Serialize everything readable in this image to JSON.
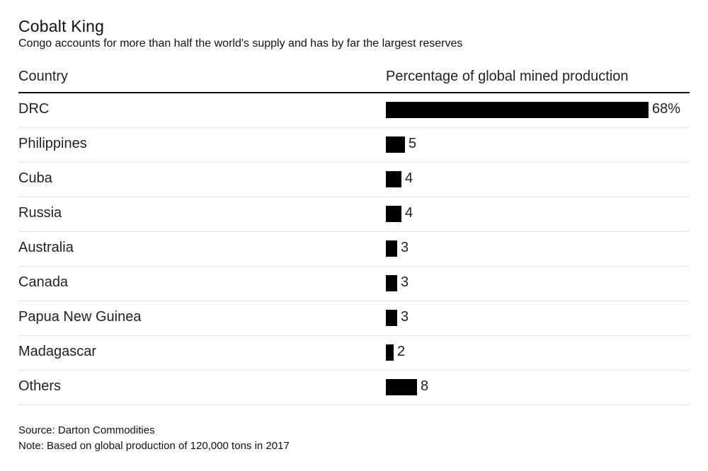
{
  "header": {
    "title": "Cobalt King",
    "subtitle": "Congo accounts for more than half the world's supply and has by far the largest reserves"
  },
  "columns": {
    "country": "Country",
    "value": "Percentage of global mined production"
  },
  "footer": {
    "source": "Source: Darton Commodities",
    "note": "Note: Based on global production of 120,000 tons in 2017"
  },
  "chart_data": {
    "type": "bar",
    "orientation": "horizontal",
    "title": "Cobalt King",
    "subtitle": "Congo accounts for more than half the world's supply and has by far the largest reserves",
    "xlabel": "Percentage of global mined production",
    "ylabel": "Country",
    "categories": [
      "DRC",
      "Philippines",
      "Cuba",
      "Russia",
      "Australia",
      "Canada",
      "Papua New Guinea",
      "Madagascar",
      "Others"
    ],
    "values": [
      68,
      5,
      4,
      4,
      3,
      3,
      3,
      2,
      8
    ],
    "value_labels": [
      "68%",
      "5",
      "4",
      "4",
      "3",
      "3",
      "3",
      "2",
      "8"
    ],
    "xlim": [
      0,
      68
    ],
    "bar_color": "#000000",
    "grid": false,
    "legend": "none"
  }
}
